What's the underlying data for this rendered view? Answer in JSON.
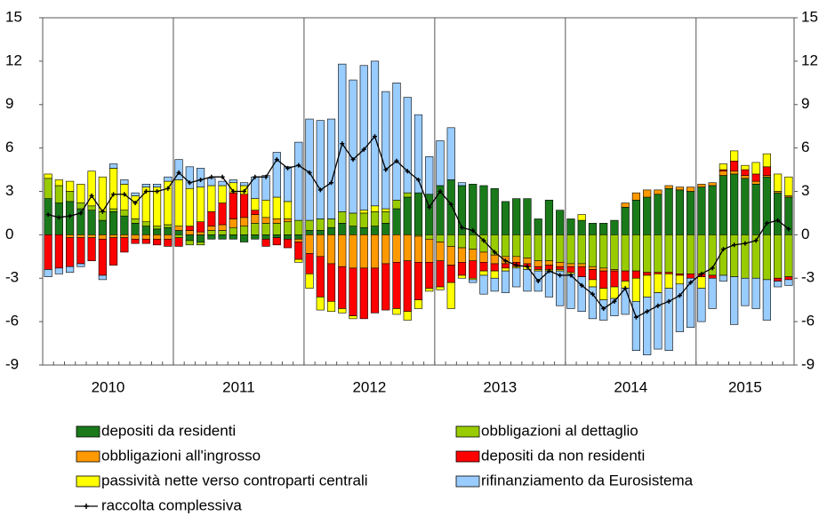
{
  "chart_data": {
    "type": "bar",
    "stacked": true,
    "x_labels": [
      "2010",
      "2011",
      "2012",
      "2013",
      "2014",
      "2015"
    ],
    "ylim": [
      -9,
      15
    ],
    "yticks": [
      -9,
      -6,
      -3,
      0,
      3,
      6,
      9,
      12,
      15
    ],
    "right_axis_ticks": true,
    "year_grid": true,
    "series": [
      {
        "name": "depositi da residenti",
        "color": "#1a7a1a",
        "values": [
          2.5,
          2.2,
          2.3,
          1.8,
          1.7,
          1.0,
          1.6,
          1.3,
          0.8,
          0.6,
          0.4,
          0.5,
          0.3,
          -0.4,
          -0.5,
          -0.3,
          -0.3,
          -0.3,
          -0.5,
          -0.3,
          -0.3,
          -0.2,
          -0.3,
          -0.3,
          0.3,
          0.3,
          0.5,
          0.8,
          0.6,
          0.5,
          0.6,
          0.8,
          1.8,
          2.6,
          2.9,
          2.8,
          3.4,
          3.8,
          3.4,
          3.5,
          3.4,
          3.2,
          2.3,
          2.5,
          2.5,
          1.1,
          2.4,
          1.7,
          1.1,
          1.0,
          0.8,
          0.8,
          1.0,
          1.9,
          2.4,
          2.6,
          2.8,
          3.2,
          3.1,
          3.0,
          3.3,
          3.4,
          4.1,
          4.2,
          3.9,
          3.5,
          4.0,
          2.9,
          2.6
        ]
      },
      {
        "name": "obbligazioni al dettaglio",
        "color": "#99cc00",
        "values": [
          1.4,
          1.2,
          0.7,
          0.4,
          0.3,
          0.6,
          0.2,
          0.4,
          0.3,
          0.3,
          0.2,
          0.2,
          -0.2,
          -0.3,
          -0.2,
          0.3,
          0.3,
          0.5,
          0.6,
          0.8,
          0.8,
          0.8,
          0.9,
          1.0,
          0.7,
          0.8,
          0.6,
          0.8,
          0.9,
          1.0,
          1.0,
          0.8,
          0.6,
          0.3,
          -0.1,
          -0.3,
          -0.5,
          -0.8,
          -0.9,
          -1.0,
          -1.2,
          -1.4,
          -1.5,
          -1.5,
          -1.6,
          -1.8,
          -1.8,
          -1.9,
          -2.0,
          -2.0,
          -2.2,
          -2.3,
          -2.4,
          -2.5,
          -2.5,
          -2.6,
          -2.6,
          -2.6,
          -2.7,
          -2.7,
          -2.7,
          -2.8,
          -2.8,
          -2.9,
          -3.0,
          -3.0,
          -3.1,
          -3.0,
          -2.9
        ]
      },
      {
        "name": "obbligazioni all'ingrosso",
        "color": "#ff9900",
        "values": [
          0,
          0,
          -0.2,
          -0.2,
          -0.2,
          -0.3,
          -0.2,
          -0.2,
          -0.3,
          -0.3,
          -0.3,
          -0.3,
          0.3,
          0.3,
          0.2,
          0.3,
          0.4,
          0.6,
          0.6,
          0.6,
          0.4,
          0.3,
          0.2,
          -0.2,
          -1.3,
          -1.5,
          -2.0,
          -2.2,
          -2.3,
          -2.3,
          -2.3,
          -2.0,
          -1.9,
          -1.8,
          -1.8,
          -1.6,
          -1.3,
          -1.3,
          -1.0,
          -0.8,
          -0.7,
          -0.6,
          -0.5,
          -0.4,
          -0.4,
          -0.4,
          -0.3,
          -0.3,
          -0.2,
          -0.2,
          -0.2,
          -0.2,
          -0.1,
          0.3,
          0.5,
          0.5,
          0.3,
          0.2,
          0.2,
          0.3,
          0.2,
          0.2,
          0.3,
          0.2,
          0.2,
          0.2,
          0.1,
          0.1,
          0.1
        ]
      },
      {
        "name": "depositi da non residenti",
        "color": "#ff0000",
        "values": [
          -2.4,
          -2.3,
          -2.0,
          -1.8,
          -1.6,
          -2.5,
          -1.9,
          -1.0,
          -0.3,
          -0.3,
          -0.4,
          -0.5,
          -0.6,
          0.3,
          0.7,
          1.0,
          1.5,
          1.8,
          1.6,
          0.3,
          -0.5,
          -0.5,
          -0.6,
          -1.2,
          -1.4,
          -2.8,
          -2.6,
          -2.9,
          -3.3,
          -3.5,
          -3.1,
          -3.2,
          -3.2,
          -3.5,
          -2.6,
          -1.8,
          -1.8,
          -1.2,
          -0.9,
          -1.2,
          -0.6,
          -0.5,
          -0.3,
          -0.3,
          -0.2,
          -0.2,
          -0.3,
          -0.2,
          -0.4,
          -0.7,
          -0.7,
          -1.2,
          -1.1,
          -0.7,
          -0.5,
          -0.2,
          -0.1,
          -0.1,
          -0.1,
          -0.3,
          -0.2,
          -0.2,
          0.1,
          0.7,
          0.4,
          0.5,
          0.6,
          -0.2,
          -0.2
        ]
      },
      {
        "name": "passività nette verso controparti centrali",
        "color": "#ffff00",
        "values": [
          0.3,
          0.4,
          0.7,
          1.3,
          2.4,
          2.4,
          2.8,
          1.8,
          1.6,
          2.4,
          2.7,
          3.0,
          3.2,
          2.6,
          2.4,
          1.8,
          1.2,
          0.7,
          0.6,
          0.8,
          1.2,
          1.5,
          1.2,
          -0.2,
          -1.0,
          -0.9,
          -0.7,
          -0.3,
          -0.2,
          0.2,
          0.4,
          0.2,
          -0.4,
          -0.6,
          -0.6,
          -0.2,
          -0.2,
          -1.8,
          -0.2,
          -0.1,
          -0.3,
          -0.5,
          -0.2,
          -0.1,
          -0.2,
          -0.1,
          -0.1,
          -0.1,
          -0.1,
          0.4,
          -0.5,
          -0.8,
          -0.8,
          -0.5,
          -1.6,
          -1.5,
          -1.3,
          -1.0,
          -0.6,
          0.0,
          -0.8,
          0.0,
          0.4,
          0.7,
          0.3,
          0.8,
          0.9,
          1.2,
          1.3
        ]
      },
      {
        "name": "rifinanziamento da Eurosistema",
        "color": "#99ccff",
        "values": [
          -0.5,
          -0.4,
          -0.4,
          -0.2,
          0,
          -0.3,
          0.3,
          0.3,
          0.2,
          0.2,
          0.2,
          0.3,
          1.4,
          1.5,
          1.3,
          0.5,
          0.3,
          0.2,
          0.2,
          1.5,
          1.7,
          3.1,
          2.4,
          5.4,
          7.0,
          6.8,
          6.9,
          10.2,
          9.2,
          10.0,
          10.0,
          8.1,
          8.1,
          6.6,
          5.4,
          2.6,
          3.1,
          3.6,
          0.2,
          -0.2,
          -1.3,
          -0.9,
          -1.5,
          -1.3,
          -1.5,
          -1.4,
          -1.8,
          -2.4,
          -2.4,
          -2.4,
          -2.2,
          -1.4,
          -1.2,
          -1.8,
          -3.4,
          -4.0,
          -3.9,
          -4.3,
          -3.3,
          -3.4,
          -2.3,
          -2.1,
          -0.4,
          -3.3,
          -1.9,
          -2.1,
          -2.8,
          -0.4,
          -0.4
        ]
      },
      {
        "name": "raccolta complessiva",
        "type": "line",
        "color": "#000000",
        "values": [
          1.4,
          1.2,
          1.3,
          1.5,
          2.7,
          1.6,
          2.8,
          2.8,
          2.2,
          3.0,
          3.0,
          3.2,
          4.3,
          3.6,
          3.8,
          4.0,
          4.0,
          3.0,
          3.0,
          4.0,
          4.0,
          5.2,
          4.6,
          4.8,
          4.3,
          3.1,
          3.6,
          6.3,
          5.2,
          5.9,
          6.8,
          4.5,
          5.1,
          4.4,
          3.8,
          1.9,
          3.0,
          2.1,
          0.5,
          0.3,
          -0.4,
          -1.2,
          -1.8,
          -2.1,
          -2.2,
          -3.2,
          -2.5,
          -2.8,
          -2.8,
          -3.5,
          -4.1,
          -5.1,
          -4.6,
          -3.7,
          -5.7,
          -5.3,
          -4.9,
          -4.6,
          -4.2,
          -3.3,
          -2.7,
          -2.3,
          -1.0,
          -0.7,
          -0.6,
          -0.4,
          0.8,
          1.0,
          0.4
        ]
      }
    ]
  }
}
